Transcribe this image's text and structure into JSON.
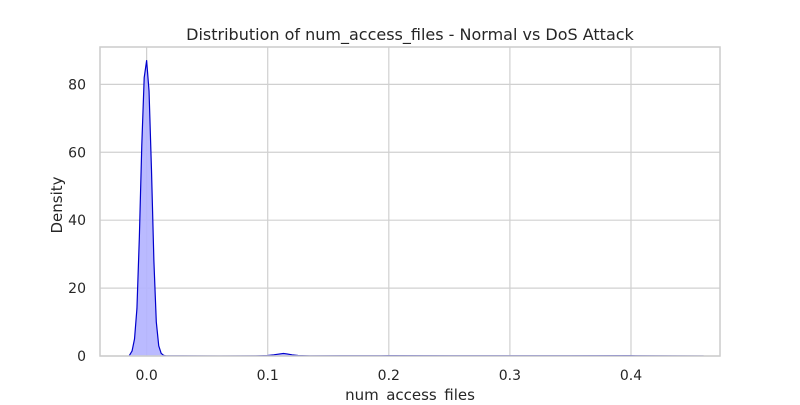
{
  "chart_data": {
    "type": "area",
    "title": "Distribution of num_access_files - Normal vs DoS Attack",
    "xlabel": "num_access_files",
    "ylabel": "Density",
    "xlim": [
      -0.0385,
      0.4735
    ],
    "ylim": [
      0,
      91
    ],
    "xticks": [
      0.0,
      0.1,
      0.2,
      0.3,
      0.4
    ],
    "xtick_labels": [
      "0.0",
      "0.1",
      "0.2",
      "0.3",
      "0.4"
    ],
    "yticks": [
      0,
      20,
      40,
      60,
      80
    ],
    "ytick_labels": [
      "0",
      "20",
      "40",
      "60",
      "80"
    ],
    "grid": true,
    "legend": "none",
    "series": [
      {
        "color": "#0000cc",
        "fill": "#b3b3ff",
        "x": [
          -0.0145,
          -0.012,
          -0.01,
          -0.008,
          -0.006,
          -0.004,
          -0.002,
          0.0,
          0.002,
          0.004,
          0.006,
          0.008,
          0.01,
          0.012,
          0.014,
          0.016,
          0.03,
          0.06,
          0.09,
          0.1,
          0.105,
          0.11,
          0.113,
          0.116,
          0.12,
          0.125,
          0.135,
          0.16,
          0.2,
          0.25,
          0.3,
          0.35,
          0.4,
          0.43,
          0.46
        ],
        "y": [
          0,
          1.5,
          5,
          14,
          35,
          62,
          82,
          87,
          78,
          55,
          28,
          10,
          3,
          0.8,
          0.2,
          0.05,
          0.03,
          0.02,
          0.05,
          0.15,
          0.35,
          0.6,
          0.75,
          0.6,
          0.35,
          0.15,
          0.05,
          0.08,
          0.1,
          0.08,
          0.08,
          0.08,
          0.1,
          0.06,
          0.02
        ]
      }
    ]
  }
}
